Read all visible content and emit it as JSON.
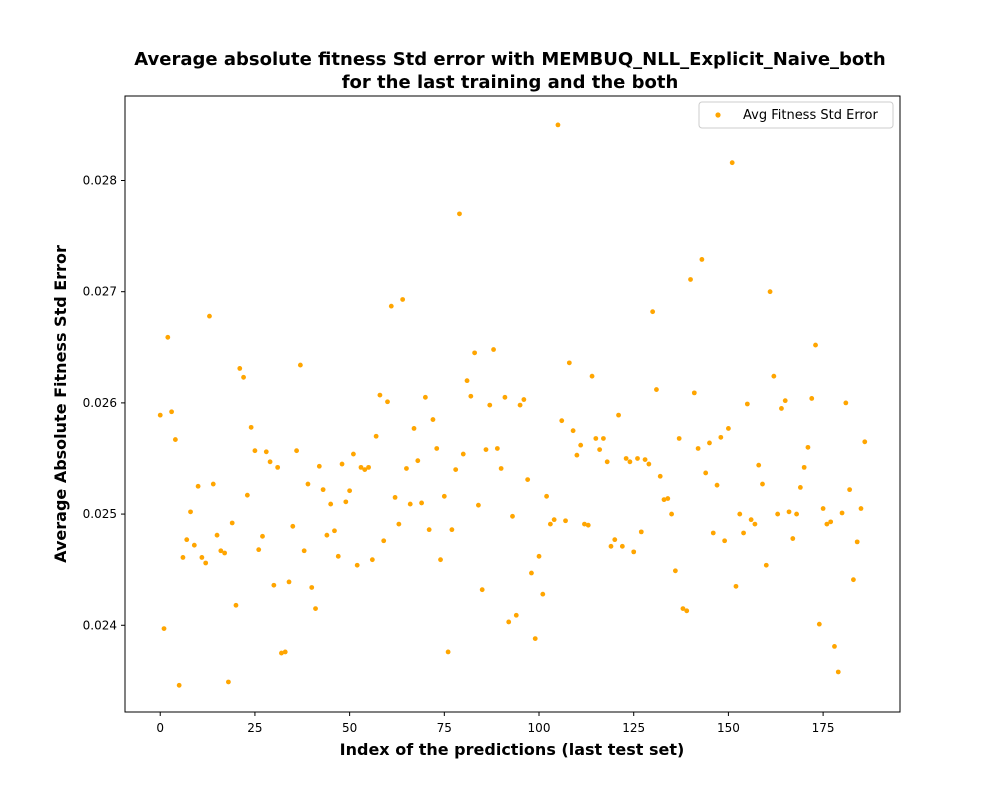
{
  "chart_data": {
    "type": "scatter",
    "title_line1": "Average absolute fitness Std error with MEMBUQ_NLL_Explicit_Naive_both",
    "title_line2": "for the last training and the both",
    "xlabel": "Index of the predictions (last test set)",
    "ylabel": "Average Absolute Fitness Std Error",
    "xlim": [
      -9.3,
      195.3
    ],
    "ylim": [
      0.02322,
      0.02876
    ],
    "xticks": [
      0,
      25,
      50,
      75,
      100,
      125,
      150,
      175
    ],
    "yticks": [
      0.024,
      0.025,
      0.026,
      0.027,
      0.028
    ],
    "ytick_labels": [
      "0.024",
      "0.025",
      "0.026",
      "0.027",
      "0.028"
    ],
    "grid": false,
    "legend_position": "top-right",
    "color": "#ffa500",
    "series": [
      {
        "name": "Avg Fitness Std Error",
        "points": [
          [
            0,
            0.02589
          ],
          [
            1,
            0.02397
          ],
          [
            2,
            0.02659
          ],
          [
            3,
            0.02592
          ],
          [
            4,
            0.02567
          ],
          [
            5,
            0.02346
          ],
          [
            6,
            0.02461
          ],
          [
            7,
            0.02477
          ],
          [
            8,
            0.02502
          ],
          [
            9,
            0.02472
          ],
          [
            10,
            0.02525
          ],
          [
            11,
            0.02461
          ],
          [
            12,
            0.02456
          ],
          [
            13,
            0.02678
          ],
          [
            14,
            0.02527
          ],
          [
            15,
            0.02481
          ],
          [
            16,
            0.02467
          ],
          [
            17,
            0.02465
          ],
          [
            18,
            0.02349
          ],
          [
            19,
            0.02492
          ],
          [
            20,
            0.02418
          ],
          [
            21,
            0.02631
          ],
          [
            22,
            0.02623
          ],
          [
            23,
            0.02517
          ],
          [
            24,
            0.02578
          ],
          [
            25,
            0.02557
          ],
          [
            26,
            0.02468
          ],
          [
            27,
            0.0248
          ],
          [
            28,
            0.02556
          ],
          [
            29,
            0.02547
          ],
          [
            30,
            0.02436
          ],
          [
            31,
            0.02542
          ],
          [
            32,
            0.02375
          ],
          [
            33,
            0.02376
          ],
          [
            34,
            0.02439
          ],
          [
            35,
            0.02489
          ],
          [
            36,
            0.02557
          ],
          [
            37,
            0.02634
          ],
          [
            38,
            0.02467
          ],
          [
            39,
            0.02527
          ],
          [
            40,
            0.02434
          ],
          [
            41,
            0.02415
          ],
          [
            42,
            0.02543
          ],
          [
            43,
            0.02522
          ],
          [
            44,
            0.02481
          ],
          [
            45,
            0.02509
          ],
          [
            46,
            0.02485
          ],
          [
            47,
            0.02462
          ],
          [
            48,
            0.02545
          ],
          [
            49,
            0.02511
          ],
          [
            50,
            0.02521
          ],
          [
            51,
            0.02554
          ],
          [
            52,
            0.02454
          ],
          [
            53,
            0.02542
          ],
          [
            54,
            0.0254
          ],
          [
            55,
            0.02542
          ],
          [
            56,
            0.02459
          ],
          [
            57,
            0.0257
          ],
          [
            58,
            0.02607
          ],
          [
            59,
            0.02476
          ],
          [
            60,
            0.02601
          ],
          [
            61,
            0.02687
          ],
          [
            62,
            0.02515
          ],
          [
            63,
            0.02491
          ],
          [
            64,
            0.02693
          ],
          [
            65,
            0.02541
          ],
          [
            66,
            0.02509
          ],
          [
            67,
            0.02577
          ],
          [
            68,
            0.02548
          ],
          [
            69,
            0.0251
          ],
          [
            70,
            0.02605
          ],
          [
            71,
            0.02486
          ],
          [
            72,
            0.02585
          ],
          [
            73,
            0.02559
          ],
          [
            74,
            0.02459
          ],
          [
            75,
            0.02516
          ],
          [
            76,
            0.02376
          ],
          [
            77,
            0.02486
          ],
          [
            78,
            0.0254
          ],
          [
            79,
            0.0277
          ],
          [
            80,
            0.02554
          ],
          [
            81,
            0.0262
          ],
          [
            82,
            0.02606
          ],
          [
            83,
            0.02645
          ],
          [
            84,
            0.02508
          ],
          [
            85,
            0.02432
          ],
          [
            86,
            0.02558
          ],
          [
            87,
            0.02598
          ],
          [
            88,
            0.02648
          ],
          [
            89,
            0.02559
          ],
          [
            90,
            0.02541
          ],
          [
            91,
            0.02605
          ],
          [
            92,
            0.02403
          ],
          [
            93,
            0.02498
          ],
          [
            94,
            0.02409
          ],
          [
            95,
            0.02598
          ],
          [
            96,
            0.02603
          ],
          [
            97,
            0.02531
          ],
          [
            98,
            0.02447
          ],
          [
            99,
            0.02388
          ],
          [
            100,
            0.02462
          ],
          [
            101,
            0.02428
          ],
          [
            102,
            0.02516
          ],
          [
            103,
            0.02491
          ],
          [
            104,
            0.02495
          ],
          [
            105,
            0.0285
          ],
          [
            106,
            0.02584
          ],
          [
            107,
            0.02494
          ],
          [
            108,
            0.02636
          ],
          [
            109,
            0.02575
          ],
          [
            110,
            0.02553
          ],
          [
            111,
            0.02562
          ],
          [
            112,
            0.02491
          ],
          [
            113,
            0.0249
          ],
          [
            114,
            0.02624
          ],
          [
            115,
            0.02568
          ],
          [
            116,
            0.02558
          ],
          [
            117,
            0.02568
          ],
          [
            118,
            0.02547
          ],
          [
            119,
            0.02471
          ],
          [
            120,
            0.02477
          ],
          [
            121,
            0.02589
          ],
          [
            122,
            0.02471
          ],
          [
            123,
            0.0255
          ],
          [
            124,
            0.02547
          ],
          [
            125,
            0.02466
          ],
          [
            126,
            0.0255
          ],
          [
            127,
            0.02484
          ],
          [
            128,
            0.02549
          ],
          [
            129,
            0.02545
          ],
          [
            130,
            0.02682
          ],
          [
            131,
            0.02612
          ],
          [
            132,
            0.02534
          ],
          [
            133,
            0.02513
          ],
          [
            134,
            0.02514
          ],
          [
            135,
            0.025
          ],
          [
            136,
            0.02449
          ],
          [
            137,
            0.02568
          ],
          [
            138,
            0.02415
          ],
          [
            139,
            0.02413
          ],
          [
            140,
            0.02711
          ],
          [
            141,
            0.02609
          ],
          [
            142,
            0.02559
          ],
          [
            143,
            0.02729
          ],
          [
            144,
            0.02537
          ],
          [
            145,
            0.02564
          ],
          [
            146,
            0.02483
          ],
          [
            147,
            0.02526
          ],
          [
            148,
            0.02569
          ],
          [
            149,
            0.02476
          ],
          [
            150,
            0.02577
          ],
          [
            151,
            0.02816
          ],
          [
            152,
            0.02435
          ],
          [
            153,
            0.025
          ],
          [
            154,
            0.02483
          ],
          [
            155,
            0.02599
          ],
          [
            156,
            0.02495
          ],
          [
            157,
            0.02491
          ],
          [
            158,
            0.02544
          ],
          [
            159,
            0.02527
          ],
          [
            160,
            0.02454
          ],
          [
            161,
            0.027
          ],
          [
            162,
            0.02624
          ],
          [
            163,
            0.025
          ],
          [
            164,
            0.02595
          ],
          [
            165,
            0.02602
          ],
          [
            166,
            0.02502
          ],
          [
            167,
            0.02478
          ],
          [
            168,
            0.025
          ],
          [
            169,
            0.02524
          ],
          [
            170,
            0.02542
          ],
          [
            171,
            0.0256
          ],
          [
            172,
            0.02604
          ],
          [
            173,
            0.02652
          ],
          [
            174,
            0.02401
          ],
          [
            175,
            0.02505
          ],
          [
            176,
            0.02491
          ],
          [
            177,
            0.02493
          ],
          [
            178,
            0.02381
          ],
          [
            179,
            0.02358
          ],
          [
            180,
            0.02501
          ],
          [
            181,
            0.026
          ],
          [
            182,
            0.02522
          ],
          [
            183,
            0.02441
          ],
          [
            184,
            0.02475
          ],
          [
            185,
            0.02505
          ],
          [
            186,
            0.02565
          ]
        ]
      }
    ]
  }
}
